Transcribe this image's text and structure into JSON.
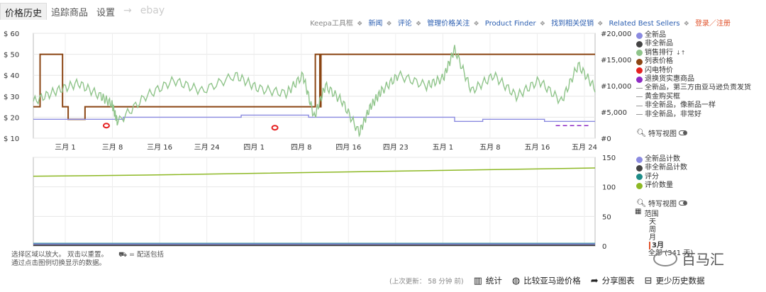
{
  "tabs": [
    {
      "label": "价格历史",
      "active": true
    },
    {
      "label": "追踪商品",
      "active": false
    },
    {
      "label": "设置",
      "active": false
    },
    {
      "label": "→",
      "active": false
    },
    {
      "label": "ebay",
      "active": false
    }
  ],
  "toolbar": {
    "label": "Keepa工具框",
    "links": [
      "新闻",
      "评论",
      "管理价格关注",
      "Product Finder",
      "找到相关促销",
      "Related Best Sellers"
    ],
    "login": "登录／注册"
  },
  "colors": {
    "new": "#8a8ae0",
    "used": "#444444",
    "sales_rank": "#8fc48a",
    "list_price": "#8b4513",
    "lightning": "#e52020",
    "warehouse": "#8e2bc4",
    "new_count": "#8a8ae0",
    "used_count": "#444444",
    "rating": "#1e8c88",
    "review_count": "#8db824"
  },
  "legend_top": [
    {
      "label": "全新品",
      "color": "#8a8ae0",
      "kind": "dot"
    },
    {
      "label": "非全新品",
      "color": "#444444",
      "kind": "dot"
    },
    {
      "label": "销售排行",
      "color": "#8fc48a",
      "kind": "dot",
      "icon": "sort-icon"
    },
    {
      "label": "列表价格",
      "color": "#8b4513",
      "kind": "dot"
    },
    {
      "label": "闪电特价",
      "color": "#e52020",
      "kind": "dot"
    },
    {
      "label": "退换货实惠商品",
      "color": "#8e2bc4",
      "kind": "dot"
    },
    {
      "label": "全新品，第三方由亚马逊负责发货",
      "kind": "dash"
    },
    {
      "label": "黄金购买框",
      "kind": "dash"
    },
    {
      "label": "非全新品，像新品一样",
      "kind": "dash"
    },
    {
      "label": "非全新品，非常好",
      "kind": "dash"
    }
  ],
  "legend_bottom": [
    {
      "label": "全新品计数",
      "color": "#8a8ae0"
    },
    {
      "label": "非全新品计数",
      "color": "#444444"
    },
    {
      "label": "评分",
      "color": "#1e8c88"
    },
    {
      "label": "评价数量",
      "color": "#8db824"
    }
  ],
  "zoom_label": "特写视图",
  "range": {
    "label": "范围",
    "options": [
      "天",
      "周",
      "月",
      "3月",
      "全部 (341 天)"
    ],
    "selected": "3月"
  },
  "hint": {
    "line1": "选择区域以放大。 双击以重置。",
    "shipping": "= 配送包括",
    "line2": "通过点击图例切换显示的数据。"
  },
  "watermark": "百马汇",
  "bottom": {
    "updated": "(上次更新： 58 分钟 前)",
    "buttons": [
      {
        "icon": "bar-chart-icon",
        "label": "统计"
      },
      {
        "icon": "globe-icon",
        "label": "比较亚马逊价格"
      },
      {
        "icon": "share-icon",
        "label": "分享图表"
      },
      {
        "icon": "minus-box-icon",
        "label": "更少历史数据"
      }
    ]
  },
  "chart_data": [
    {
      "type": "line",
      "x_tick_labels": [
        "三月 1",
        "三月 8",
        "三月 16",
        "三月 24",
        "四月 1",
        "四月 8",
        "四月 16",
        "四月 23",
        "五月 1",
        "五月 8",
        "五月 16",
        "五月 24"
      ],
      "y_left_ticks": [
        "$ 60",
        "$ 50",
        "$ 40",
        "$ 30",
        "$ 20",
        "$ 10"
      ],
      "y_right_ticks": [
        "#20,000",
        "#15,000",
        "#10,000",
        "#5,000",
        "#0"
      ],
      "ylim_left": [
        10,
        60
      ],
      "ylim_right": [
        0,
        20000
      ],
      "grid": true,
      "series": [
        {
          "name": "列表价格",
          "axis": "left",
          "x": [
            0.0,
            0.01,
            0.012,
            0.05,
            0.052,
            0.06,
            0.062,
            0.09,
            0.092,
            0.5,
            0.502,
            0.51,
            0.512,
            1.0
          ],
          "y": [
            25,
            25,
            50,
            50,
            25,
            25,
            19,
            19,
            25,
            25,
            50,
            25,
            50,
            50
          ]
        },
        {
          "name": "全新品",
          "axis": "left",
          "x": [
            0.0,
            0.15,
            0.16,
            0.36,
            0.37,
            0.48,
            0.49,
            0.74,
            0.75,
            0.79,
            0.8,
            0.9,
            0.91,
            1.0
          ],
          "y": [
            19,
            19,
            20,
            20,
            21,
            21,
            20,
            20,
            18,
            18,
            19,
            19,
            18,
            18
          ]
        },
        {
          "name": "销售排行",
          "axis": "right",
          "x": [
            0.0,
            0.04,
            0.08,
            0.12,
            0.14,
            0.15,
            0.2,
            0.25,
            0.3,
            0.36,
            0.4,
            0.45,
            0.48,
            0.5,
            0.52,
            0.55,
            0.58,
            0.6,
            0.62,
            0.65,
            0.7,
            0.73,
            0.75,
            0.78,
            0.82,
            0.86,
            0.9,
            0.94,
            0.97,
            1.0
          ],
          "y": [
            7000,
            9000,
            10500,
            8000,
            6500,
            3000,
            8000,
            11000,
            9000,
            12000,
            9500,
            8500,
            12000,
            4000,
            10000,
            7000,
            1000,
            6000,
            9000,
            12000,
            10000,
            11500,
            17000,
            9000,
            12000,
            8000,
            11000,
            7000,
            14000,
            9500
          ]
        },
        {
          "name": "闪电特价",
          "axis": "left",
          "x": [
            0.13,
            0.43
          ],
          "y": [
            16,
            15
          ]
        },
        {
          "name": "退换货实惠商品",
          "axis": "left",
          "x": [
            0.93,
            0.99
          ],
          "y": [
            16,
            16
          ]
        }
      ]
    },
    {
      "type": "line",
      "y_right_ticks": [
        "150",
        "100",
        "50",
        "0"
      ],
      "ylim": [
        0,
        150
      ],
      "grid": true,
      "series": [
        {
          "name": "评价数量",
          "x": [
            0.0,
            0.2,
            0.4,
            0.6,
            0.8,
            1.0
          ],
          "y": [
            118,
            120,
            123,
            126,
            129,
            132
          ]
        },
        {
          "name": "评分",
          "x": [
            0.0,
            1.0
          ],
          "y": [
            4,
            4
          ]
        },
        {
          "name": "全新品计数",
          "x": [
            0.0,
            1.0
          ],
          "y": [
            3,
            3
          ]
        },
        {
          "name": "非全新品计数",
          "x": [
            0.0,
            1.0
          ],
          "y": [
            1,
            1
          ]
        }
      ]
    }
  ]
}
